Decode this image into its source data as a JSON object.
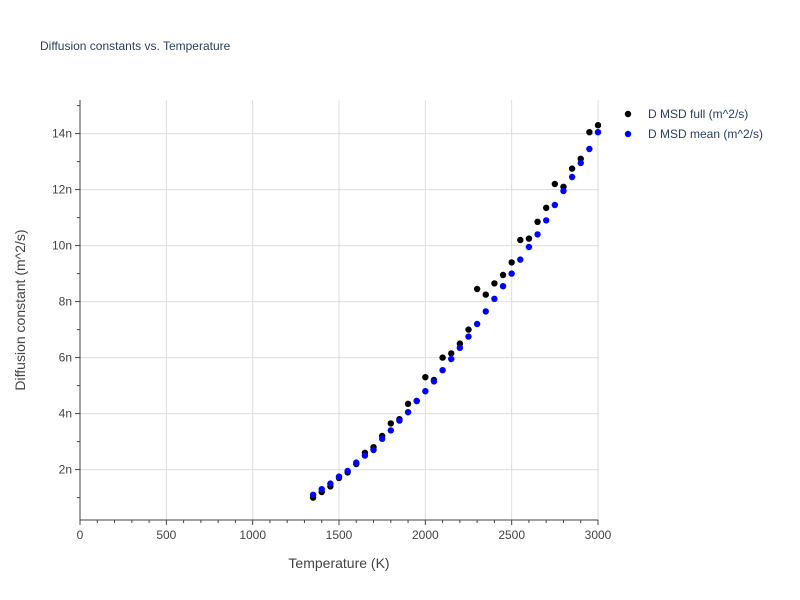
{
  "chart_data": {
    "type": "scatter",
    "title": "Diffusion constants vs. Temperature",
    "xlabel": "Temperature (K)",
    "ylabel": "Diffusion constant (m^2/s)",
    "xlim": [
      0,
      3000
    ],
    "ylim": [
      0.2,
      15.2
    ],
    "x_ticks": [
      0,
      500,
      1000,
      1500,
      2000,
      2500,
      3000
    ],
    "x_tick_labels": [
      "0",
      "500",
      "1000",
      "1500",
      "2000",
      "2500",
      "3000"
    ],
    "y_ticks": [
      2,
      4,
      6,
      8,
      10,
      12,
      14
    ],
    "y_tick_labels": [
      "2n",
      "4n",
      "6n",
      "8n",
      "10n",
      "12n",
      "14n"
    ],
    "grid": true,
    "legend_position": "top-right, outside plot",
    "series": [
      {
        "name": "D MSD full (m^2/s)",
        "color": "#000000",
        "x": [
          1350,
          1400,
          1450,
          1500,
          1550,
          1600,
          1650,
          1700,
          1750,
          1800,
          1850,
          1900,
          1950,
          2000,
          2050,
          2100,
          2150,
          2200,
          2250,
          2300,
          2350,
          2400,
          2450,
          2500,
          2550,
          2600,
          2650,
          2700,
          2750,
          2800,
          2850,
          2900,
          2950,
          3000
        ],
        "y": [
          1.0,
          1.2,
          1.4,
          1.7,
          1.9,
          2.2,
          2.6,
          2.8,
          3.2,
          3.65,
          3.8,
          4.35,
          4.45,
          5.3,
          5.2,
          6.0,
          6.15,
          6.5,
          7.0,
          8.45,
          8.25,
          8.65,
          8.95,
          9.4,
          10.2,
          10.25,
          10.85,
          11.35,
          12.2,
          12.1,
          12.75,
          13.1,
          14.05,
          14.3
        ]
      },
      {
        "name": "D MSD mean (m^2/s)",
        "color": "#0000ff",
        "x": [
          1350,
          1400,
          1450,
          1500,
          1550,
          1600,
          1650,
          1700,
          1750,
          1800,
          1850,
          1900,
          1950,
          2000,
          2050,
          2100,
          2150,
          2200,
          2250,
          2300,
          2350,
          2400,
          2450,
          2500,
          2550,
          2600,
          2650,
          2700,
          2750,
          2800,
          2850,
          2900,
          2950,
          3000
        ],
        "y": [
          1.1,
          1.3,
          1.5,
          1.75,
          1.95,
          2.25,
          2.5,
          2.7,
          3.1,
          3.4,
          3.75,
          4.05,
          4.45,
          4.8,
          5.15,
          5.55,
          5.95,
          6.35,
          6.75,
          7.2,
          7.65,
          8.1,
          8.55,
          9.0,
          9.5,
          9.95,
          10.4,
          10.9,
          11.45,
          11.95,
          12.45,
          12.95,
          13.45,
          14.05
        ]
      }
    ]
  }
}
